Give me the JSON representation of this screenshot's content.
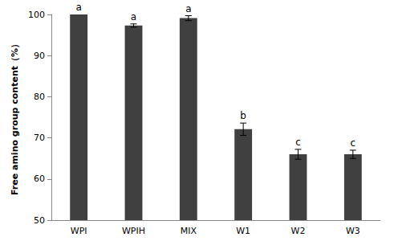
{
  "chart_data": {
    "type": "bar",
    "y_label": "Free amino group content（%）",
    "categories": [
      "WPI",
      "WPIH",
      "MIX",
      "W1",
      "W2",
      "W3"
    ],
    "values": [
      100,
      97.3,
      99.1,
      72.1,
      66.0,
      66.0
    ],
    "errors": [
      0,
      0.4,
      0.6,
      1.5,
      1.2,
      1.0
    ],
    "annotations": [
      "a",
      "a",
      "a",
      "b",
      "c",
      "c"
    ],
    "color": "#404040",
    "ylim": [
      50,
      100
    ],
    "yticks": [
      50,
      60,
      70,
      80,
      90,
      100
    ],
    "grid": false
  }
}
